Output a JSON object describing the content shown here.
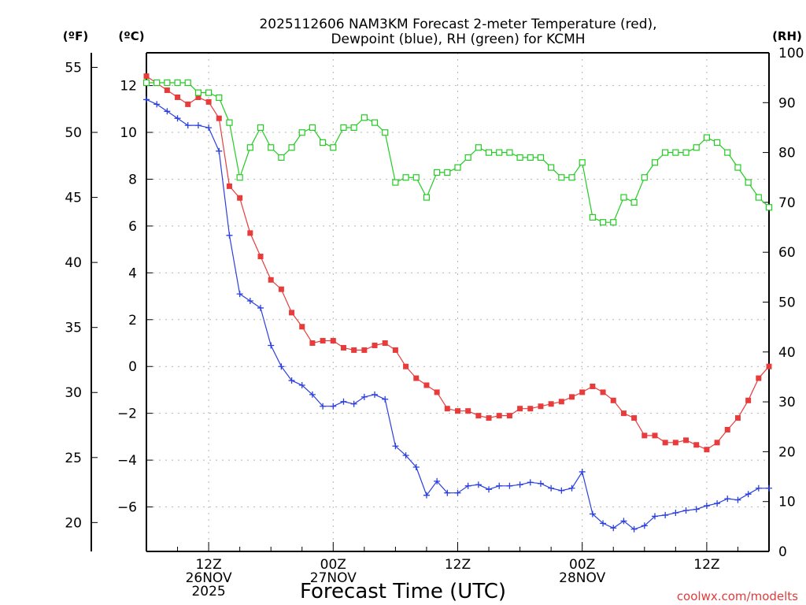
{
  "chart_data": {
    "type": "line",
    "title_lines": [
      "2025112606 NAM3KM Forecast 2-meter Temperature (red),",
      "Dewpoint (blue), RH (green) for KCMH"
    ],
    "xlabel": "Forecast Time (UTC)",
    "credit": "coolwx.com/modelts",
    "unit_labels": {
      "fahrenheit": "(ºF)",
      "celsius": "(ºC)",
      "rh": "(RH)"
    },
    "x_unit": "forecast hours from 2025-11-26 06Z",
    "xlim": [
      0,
      60
    ],
    "x_ticks": [
      {
        "x": 6,
        "lines": [
          "12Z",
          "26NOV",
          "2025"
        ]
      },
      {
        "x": 18,
        "lines": [
          "00Z",
          "27NOV"
        ]
      },
      {
        "x": 30,
        "lines": [
          "12Z"
        ]
      },
      {
        "x": 42,
        "lines": [
          "00Z",
          "28NOV"
        ]
      },
      {
        "x": 54,
        "lines": [
          "12Z"
        ]
      }
    ],
    "celsius_axis": {
      "ylim": [
        -7.9,
        13.4
      ],
      "ticks": [
        12,
        10,
        8,
        6,
        4,
        2,
        0,
        -2,
        -4,
        -6
      ]
    },
    "fahrenheit_axis": {
      "ticks": [
        55,
        50,
        45,
        40,
        35,
        30,
        25,
        20
      ]
    },
    "rh_axis": {
      "ylim": [
        0,
        100
      ],
      "ticks": [
        100,
        90,
        80,
        70,
        60,
        50,
        40,
        30,
        20,
        10,
        0
      ]
    },
    "x": [
      0,
      1,
      2,
      3,
      4,
      5,
      6,
      7,
      8,
      9,
      10,
      11,
      12,
      13,
      14,
      15,
      16,
      17,
      18,
      19,
      20,
      21,
      22,
      23,
      24,
      25,
      26,
      27,
      28,
      29,
      30,
      31,
      32,
      33,
      34,
      35,
      36,
      37,
      38,
      39,
      40,
      41,
      42,
      43,
      44,
      45,
      46,
      47,
      48,
      49,
      50,
      51,
      52,
      53,
      54,
      55,
      56,
      57,
      58,
      59,
      60
    ],
    "series": [
      {
        "name": "Temperature",
        "unit": "°C",
        "color": "#e83c3c",
        "marker": "filled-square",
        "values": [
          12.4,
          12.1,
          11.8,
          11.5,
          11.2,
          11.5,
          11.3,
          10.6,
          7.7,
          7.2,
          5.7,
          4.7,
          3.7,
          3.3,
          2.3,
          1.7,
          1.0,
          1.1,
          1.1,
          0.8,
          0.7,
          0.7,
          0.9,
          1.0,
          0.7,
          0.0,
          -0.5,
          -0.8,
          -1.1,
          -1.8,
          -1.9,
          -1.9,
          -2.1,
          -2.2,
          -2.1,
          -2.1,
          -1.8,
          -1.8,
          -1.7,
          -1.6,
          -1.5,
          -1.3,
          -1.1,
          -0.85,
          -1.1,
          -1.45,
          -2.0,
          -2.2,
          -2.95,
          -2.95,
          -3.25,
          -3.25,
          -3.15,
          -3.35,
          -3.55,
          -3.25,
          -2.7,
          -2.2,
          -1.45,
          -0.5,
          0.0
        ]
      },
      {
        "name": "Dewpoint",
        "unit": "°C",
        "color": "#2a3fe0",
        "marker": "plus",
        "values": [
          11.4,
          11.2,
          10.9,
          10.6,
          10.3,
          10.3,
          10.2,
          9.2,
          5.6,
          3.1,
          2.8,
          2.5,
          0.9,
          0.0,
          -0.6,
          -0.8,
          -1.2,
          -1.7,
          -1.7,
          -1.5,
          -1.6,
          -1.3,
          -1.2,
          -1.4,
          -3.4,
          -3.8,
          -4.3,
          -5.5,
          -4.9,
          -5.4,
          -5.4,
          -5.1,
          -5.05,
          -5.25,
          -5.1,
          -5.1,
          -5.05,
          -4.95,
          -5.0,
          -5.2,
          -5.3,
          -5.2,
          -4.5,
          -6.3,
          -6.7,
          -6.9,
          -6.6,
          -6.95,
          -6.8,
          -6.4,
          -6.35,
          -6.25,
          -6.15,
          -6.1,
          -5.95,
          -5.85,
          -5.65,
          -5.7,
          -5.45,
          -5.2,
          -5.2
        ]
      },
      {
        "name": "Relative Humidity",
        "unit": "%",
        "color": "#22cc22",
        "marker": "open-square",
        "values": [
          94,
          94,
          94,
          94,
          94,
          92,
          92,
          91,
          86,
          75,
          81,
          85,
          81,
          79,
          81,
          84,
          85,
          82,
          81,
          85,
          85,
          87,
          86,
          84,
          74,
          75,
          75,
          71,
          76,
          76,
          77,
          79,
          81,
          80,
          80,
          80,
          79,
          79,
          79,
          77,
          75,
          75,
          78,
          67,
          66,
          66,
          71,
          70,
          75,
          78,
          80,
          80,
          80,
          81,
          83,
          82,
          80,
          77,
          74,
          71,
          69
        ]
      }
    ]
  }
}
